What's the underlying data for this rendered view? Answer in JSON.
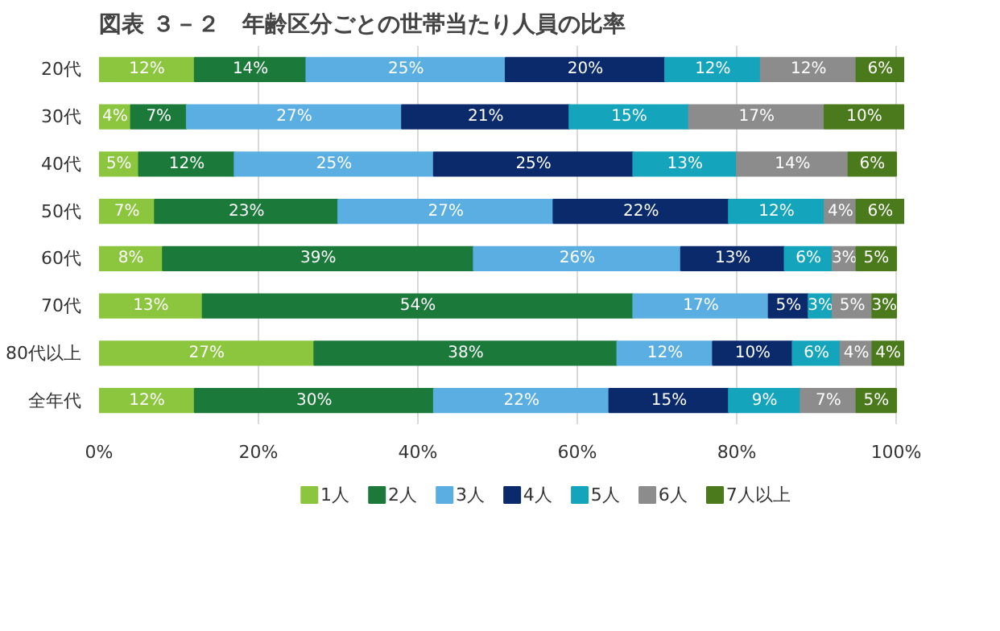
{
  "chart_data": {
    "type": "bar",
    "orientation": "horizontal",
    "stacked": true,
    "title": "図表 ３－２　年齢区分ごとの世帯当たり人員の比率",
    "categories": [
      "20代",
      "30代",
      "40代",
      "50代",
      "60代",
      "70代",
      "80代以上",
      "全年代"
    ],
    "series": [
      {
        "name": "1人",
        "color": "#8cc63e",
        "values": [
          12,
          4,
          5,
          7,
          8,
          13,
          27,
          12
        ],
        "value_labels": [
          "12%",
          "4%",
          "5%",
          "7%",
          "8%",
          "13%",
          "27%",
          "12%"
        ]
      },
      {
        "name": "2人",
        "color": "#1b7a3a",
        "values": [
          14,
          7,
          12,
          23,
          39,
          54,
          38,
          30
        ],
        "value_labels": [
          "14%",
          "7%",
          "12%",
          "23%",
          "39%",
          "54%",
          "38%",
          "30%"
        ]
      },
      {
        "name": "3人",
        "color": "#5aaee2",
        "values": [
          25,
          27,
          25,
          27,
          26,
          17,
          12,
          22
        ],
        "value_labels": [
          "25%",
          "27%",
          "25%",
          "27%",
          "26%",
          "17%",
          "12%",
          "22%"
        ]
      },
      {
        "name": "4人",
        "color": "#0b2a6b",
        "values": [
          20,
          21,
          25,
          22,
          13,
          5,
          10,
          15
        ],
        "value_labels": [
          "20%",
          "21%",
          "25%",
          "22%",
          "13%",
          "5%",
          "10%",
          "15%"
        ]
      },
      {
        "name": "5人",
        "color": "#14a5bd",
        "values": [
          12,
          15,
          13,
          12,
          6,
          3,
          6,
          9
        ],
        "value_labels": [
          "12%",
          "15%",
          "13%",
          "12%",
          "6%",
          "3%",
          "6%",
          "9%"
        ]
      },
      {
        "name": "6人",
        "color": "#8c8c8c",
        "values": [
          12,
          17,
          14,
          4,
          3,
          5,
          4,
          7
        ],
        "value_labels": [
          "12%",
          "17%",
          "14%",
          "4%",
          "3%",
          "5%",
          "4%",
          "7%"
        ]
      },
      {
        "name": "7人以上",
        "color": "#4a7a1c",
        "values": [
          6,
          10,
          6,
          6,
          5,
          3,
          4,
          5
        ],
        "value_labels": [
          "6%",
          "10%",
          "6%",
          "6%",
          "5%",
          "3%",
          "4%",
          "5%"
        ]
      }
    ],
    "xlim": [
      0,
      101
    ],
    "xticks": [
      {
        "value": 0,
        "label": "0%"
      },
      {
        "value": 20,
        "label": "20%"
      },
      {
        "value": 40,
        "label": "40%"
      },
      {
        "value": 60,
        "label": "60%"
      },
      {
        "value": 80,
        "label": "80%"
      },
      {
        "value": 100,
        "label": "100%"
      }
    ],
    "data_labels": true,
    "grid": "x",
    "legend": "bottom"
  }
}
